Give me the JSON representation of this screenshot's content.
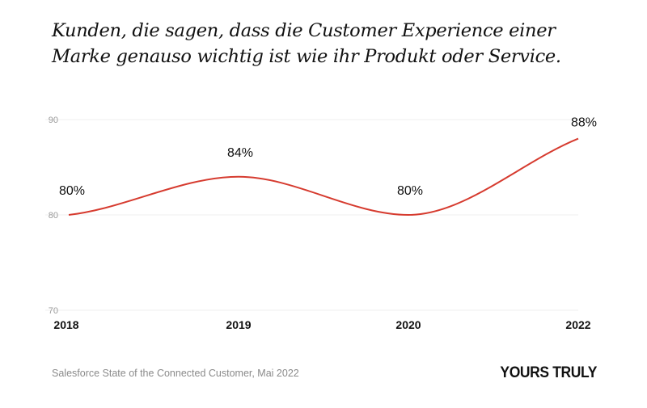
{
  "title": {
    "line1": "Kunden, die sagen, dass die Customer Experience einer",
    "line2": "Marke genauso wichtig ist wie ihr Produkt oder Service."
  },
  "colors": {
    "series": "#d63b2f",
    "grid": "#efefef",
    "tick": "#9a9a9a"
  },
  "chart_data": {
    "type": "line",
    "title": "Kunden, die sagen, dass die Customer Experience einer Marke genauso wichtig ist wie ihr Produkt oder Service.",
    "x": [
      "2018",
      "2019",
      "2020",
      "2022"
    ],
    "values": [
      80,
      84,
      80,
      88
    ],
    "data_labels": [
      "80%",
      "84%",
      "80%",
      "88%"
    ],
    "ylim": [
      70,
      90
    ],
    "yticks": [
      "70",
      "80",
      "90"
    ],
    "grid": true,
    "xlabel": "",
    "ylabel": ""
  },
  "footer": {
    "source": "Salesforce State of the Connected Customer, Mai 2022",
    "brand": "YOURS TRULY"
  }
}
